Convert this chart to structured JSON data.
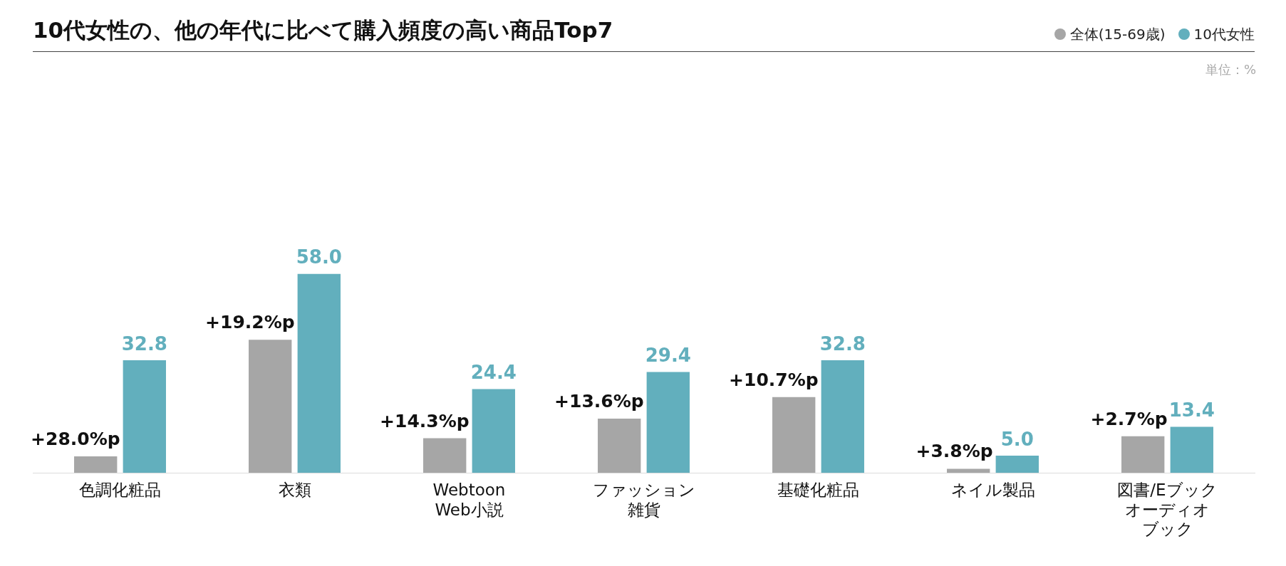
{
  "chart_data": {
    "type": "bar",
    "title": "10代女性の、他の年代に比べて購入頻度の高い商品Top7",
    "categories": [
      "色調化粧品",
      "衣類",
      "Webtoon Web小説",
      "ファッション雑貨",
      "基礎化粧品",
      "ネイル製品",
      "図書/Eブックオーディオブック"
    ],
    "series": [
      {
        "name": "全体(15-69歳)",
        "color": "#a6a6a6",
        "values": [
          4.8,
          38.8,
          10.1,
          15.8,
          22.1,
          1.2,
          10.7
        ]
      },
      {
        "name": "10代女性",
        "color": "#62afbd",
        "values": [
          32.8,
          58.0,
          24.4,
          29.4,
          32.8,
          5.0,
          13.4
        ],
        "value_labels": [
          "32.8",
          "58.0",
          "24.4",
          "29.4",
          "32.8",
          "5.0",
          "13.4"
        ]
      }
    ],
    "grid": false,
    "legend": "top right",
    "tick_labels": "x",
    "annotations": [
      "単位：%",
      {
        "text": "+28.0%p",
        "x": "色調化粧品",
        "y": 4.8
      },
      {
        "text": "+19.2%p",
        "x": "衣類",
        "y": 38.8
      },
      {
        "text": "+14.3%p",
        "x": "Webtoon Web小説",
        "y": 10.1
      },
      {
        "text": "+13.6%p",
        "x": "ファッション雑貨",
        "y": 15.8
      },
      {
        "text": "+10.7%p",
        "x": "基礎化粧品",
        "y": 22.1
      },
      {
        "text": "+3.8%p",
        "x": "ネイル製品",
        "y": 1.2
      },
      {
        "text": "+2.7%p",
        "x": "図書/Eブックオーディオブック",
        "y": 10.7
      }
    ]
  }
}
